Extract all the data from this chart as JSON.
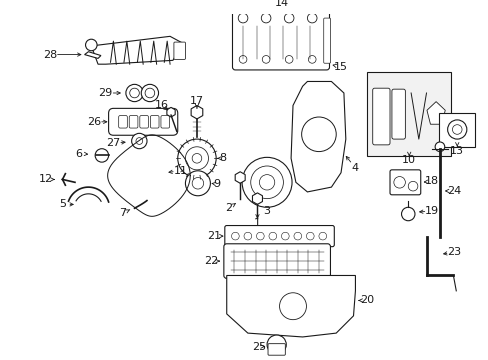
{
  "bg_color": "#ffffff",
  "line_color": "#1a1a1a",
  "figsize": [
    4.89,
    3.6
  ],
  "dpi": 100,
  "lw": 0.8
}
